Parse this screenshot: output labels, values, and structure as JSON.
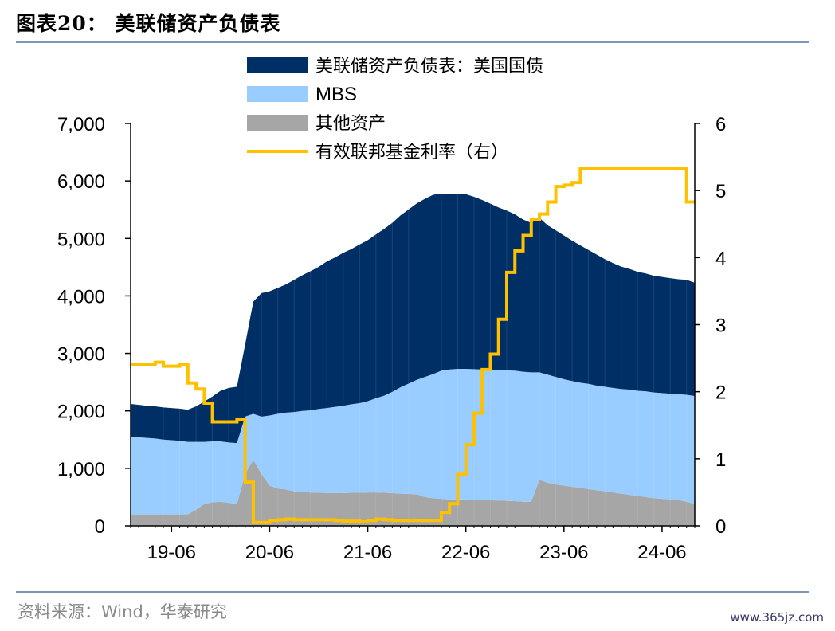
{
  "header": {
    "title": "图表20： 美联储资产负债表"
  },
  "footer": {
    "source": "资料来源：Wind，华泰研究",
    "watermark": "www.365jz.com"
  },
  "colors": {
    "treasury": "#002f66",
    "mbs": "#99ccff",
    "other": "#a6a6a6",
    "fed_rate": "#ffc000",
    "rule": "#7f95b5"
  },
  "chart_data": {
    "type": "area",
    "title": "",
    "legend": {
      "placement": "top-center",
      "entries": [
        "美联储资产负债表：美国国债",
        "MBS",
        "其他资产",
        "有效联邦基金利率（右）"
      ]
    },
    "x_tick_labels": [
      "19-06",
      "20-06",
      "21-06",
      "22-06",
      "23-06",
      "24-06"
    ],
    "x_range": [
      "2019-01",
      "2024-10"
    ],
    "y_left": {
      "ticks": [
        "0",
        "1,000",
        "2,000",
        "3,000",
        "4,000",
        "5,000",
        "6,000",
        "7,000"
      ],
      "range": [
        0,
        7000
      ]
    },
    "y_right": {
      "ticks": [
        "0",
        "1",
        "2",
        "3",
        "4",
        "5",
        "6"
      ],
      "range": [
        0,
        6
      ]
    },
    "months": [
      "2019-01",
      "2019-02",
      "2019-03",
      "2019-04",
      "2019-05",
      "2019-06",
      "2019-07",
      "2019-08",
      "2019-09",
      "2019-10",
      "2019-11",
      "2019-12",
      "2020-01",
      "2020-02",
      "2020-03",
      "2020-04",
      "2020-05",
      "2020-06",
      "2020-07",
      "2020-08",
      "2020-09",
      "2020-10",
      "2020-11",
      "2020-12",
      "2021-01",
      "2021-02",
      "2021-03",
      "2021-04",
      "2021-05",
      "2021-06",
      "2021-07",
      "2021-08",
      "2021-09",
      "2021-10",
      "2021-11",
      "2021-12",
      "2022-01",
      "2022-02",
      "2022-03",
      "2022-04",
      "2022-05",
      "2022-06",
      "2022-07",
      "2022-08",
      "2022-09",
      "2022-10",
      "2022-11",
      "2022-12",
      "2023-01",
      "2023-02",
      "2023-03",
      "2023-04",
      "2023-05",
      "2023-06",
      "2023-07",
      "2023-08",
      "2023-09",
      "2023-10",
      "2023-11",
      "2023-12",
      "2024-01",
      "2024-02",
      "2024-03",
      "2024-04",
      "2024-05",
      "2024-06",
      "2024-07",
      "2024-08",
      "2024-09",
      "2024-10"
    ],
    "series": [
      {
        "name": "其他资产",
        "axis": "left",
        "values": [
          200,
          200,
          200,
          200,
          200,
          200,
          200,
          200,
          280,
          380,
          410,
          420,
          400,
          380,
          900,
          1150,
          900,
          700,
          650,
          630,
          600,
          590,
          580,
          575,
          570,
          570,
          570,
          575,
          575,
          580,
          580,
          575,
          570,
          560,
          555,
          550,
          500,
          480,
          470,
          460,
          460,
          460,
          455,
          450,
          445,
          440,
          435,
          430,
          420,
          420,
          800,
          750,
          720,
          700,
          680,
          660,
          640,
          620,
          600,
          580,
          560,
          540,
          520,
          500,
          480,
          470,
          460,
          450,
          420,
          380
        ]
      },
      {
        "name": "MBS",
        "axis": "left",
        "values": [
          1350,
          1340,
          1330,
          1320,
          1300,
          1290,
          1280,
          1260,
          1180,
          1080,
          1060,
          1050,
          1050,
          1060,
          1000,
          800,
          1000,
          1220,
          1300,
          1340,
          1380,
          1410,
          1430,
          1460,
          1480,
          1500,
          1520,
          1540,
          1560,
          1590,
          1640,
          1690,
          1760,
          1850,
          1920,
          1990,
          2090,
          2160,
          2230,
          2260,
          2270,
          2270,
          2270,
          2270,
          2270,
          2270,
          2270,
          2270,
          2260,
          2250,
          1870,
          1880,
          1870,
          1850,
          1840,
          1830,
          1830,
          1820,
          1820,
          1820,
          1820,
          1830,
          1830,
          1840,
          1840,
          1840,
          1840,
          1840,
          1860,
          1880
        ]
      },
      {
        "name": "美联储资产负债表：美国国债",
        "axis": "left",
        "values": [
          570,
          565,
          560,
          560,
          560,
          560,
          560,
          560,
          620,
          700,
          780,
          880,
          950,
          980,
          1250,
          1950,
          2150,
          2160,
          2190,
          2230,
          2300,
          2360,
          2420,
          2470,
          2550,
          2600,
          2660,
          2700,
          2760,
          2800,
          2850,
          2900,
          2940,
          2990,
          3030,
          3070,
          3100,
          3120,
          3080,
          3060,
          3050,
          3040,
          3000,
          2950,
          2890,
          2830,
          2780,
          2720,
          2650,
          2600,
          2690,
          2600,
          2550,
          2500,
          2440,
          2390,
          2330,
          2280,
          2220,
          2170,
          2130,
          2100,
          2070,
          2050,
          2030,
          2020,
          2010,
          2000,
          2000,
          1970
        ]
      },
      {
        "name": "有效联邦基金利率（右）",
        "axis": "right",
        "values": [
          2.4,
          2.4,
          2.41,
          2.44,
          2.38,
          2.38,
          2.4,
          2.13,
          2.04,
          1.83,
          1.55,
          1.55,
          1.55,
          1.58,
          0.65,
          0.05,
          0.05,
          0.08,
          0.09,
          0.1,
          0.09,
          0.09,
          0.09,
          0.09,
          0.09,
          0.08,
          0.07,
          0.07,
          0.06,
          0.08,
          0.1,
          0.09,
          0.08,
          0.08,
          0.08,
          0.08,
          0.08,
          0.08,
          0.2,
          0.33,
          0.77,
          1.21,
          1.68,
          2.33,
          2.56,
          3.08,
          3.78,
          4.1,
          4.33,
          4.57,
          4.65,
          4.83,
          5.06,
          5.08,
          5.12,
          5.33,
          5.33,
          5.33,
          5.33,
          5.33,
          5.33,
          5.33,
          5.33,
          5.33,
          5.33,
          5.33,
          5.33,
          5.33,
          4.83,
          4.83
        ]
      }
    ]
  }
}
